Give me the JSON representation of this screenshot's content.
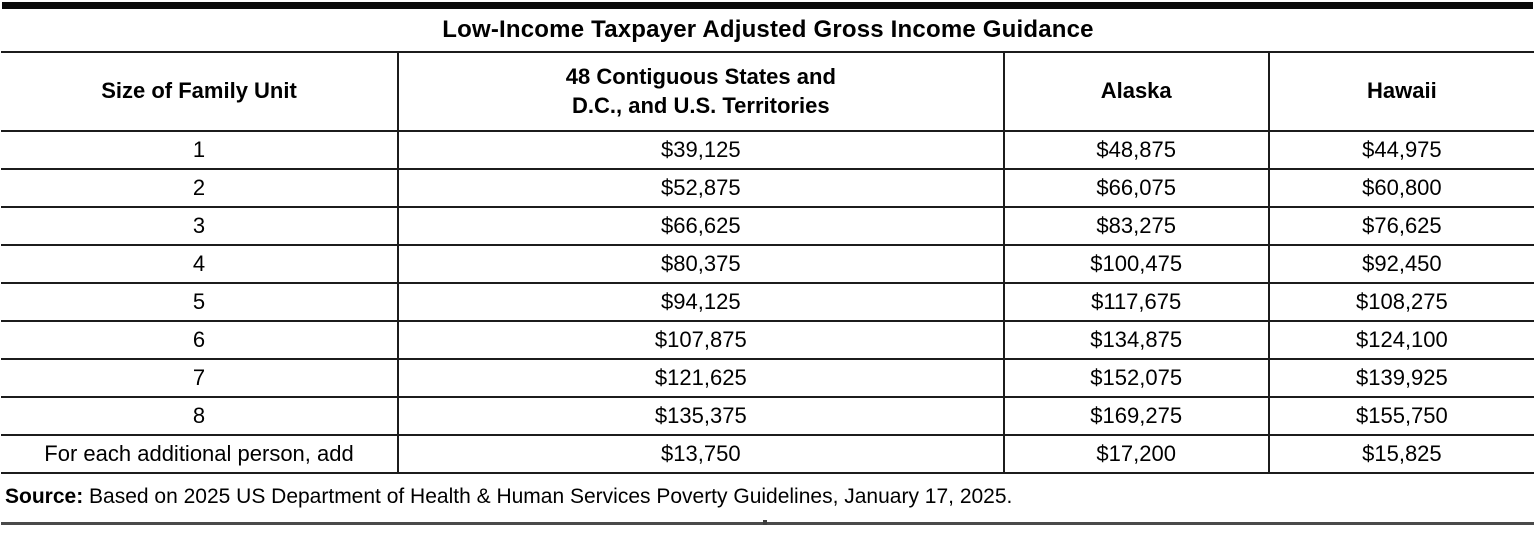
{
  "title": "Low-Income Taxpayer Adjusted Gross Income Guidance",
  "table": {
    "columns": {
      "size": "Size of Family Unit",
      "contiguous": "48 Contiguous States and\nD.C., and U.S. Territories",
      "alaska": "Alaska",
      "hawaii": "Hawaii"
    },
    "rows": [
      {
        "size": "1",
        "contiguous": "$39,125",
        "alaska": "$48,875",
        "hawaii": "$44,975"
      },
      {
        "size": "2",
        "contiguous": "$52,875",
        "alaska": "$66,075",
        "hawaii": "$60,800"
      },
      {
        "size": "3",
        "contiguous": "$66,625",
        "alaska": "$83,275",
        "hawaii": "$76,625"
      },
      {
        "size": "4",
        "contiguous": "$80,375",
        "alaska": "$100,475",
        "hawaii": "$92,450"
      },
      {
        "size": "5",
        "contiguous": "$94,125",
        "alaska": "$117,675",
        "hawaii": "$108,275"
      },
      {
        "size": "6",
        "contiguous": "$107,875",
        "alaska": "$134,875",
        "hawaii": "$124,100"
      },
      {
        "size": "7",
        "contiguous": "$121,625",
        "alaska": "$152,075",
        "hawaii": "$139,925"
      },
      {
        "size": "8",
        "contiguous": "$135,375",
        "alaska": "$169,275",
        "hawaii": "$155,750"
      },
      {
        "size": "For each additional person, add",
        "contiguous": "$13,750",
        "alaska": "$17,200",
        "hawaii": "$15,825"
      }
    ]
  },
  "source": {
    "label": "Source:",
    "text": "Based on 2025 US Department of Health & Human Services Poverty Guidelines, January 17, 2025."
  },
  "colors": {
    "rule": "#1c1c1c",
    "top_bar": "#0a0a0a",
    "bottom_rule": "#4a4a4a"
  }
}
